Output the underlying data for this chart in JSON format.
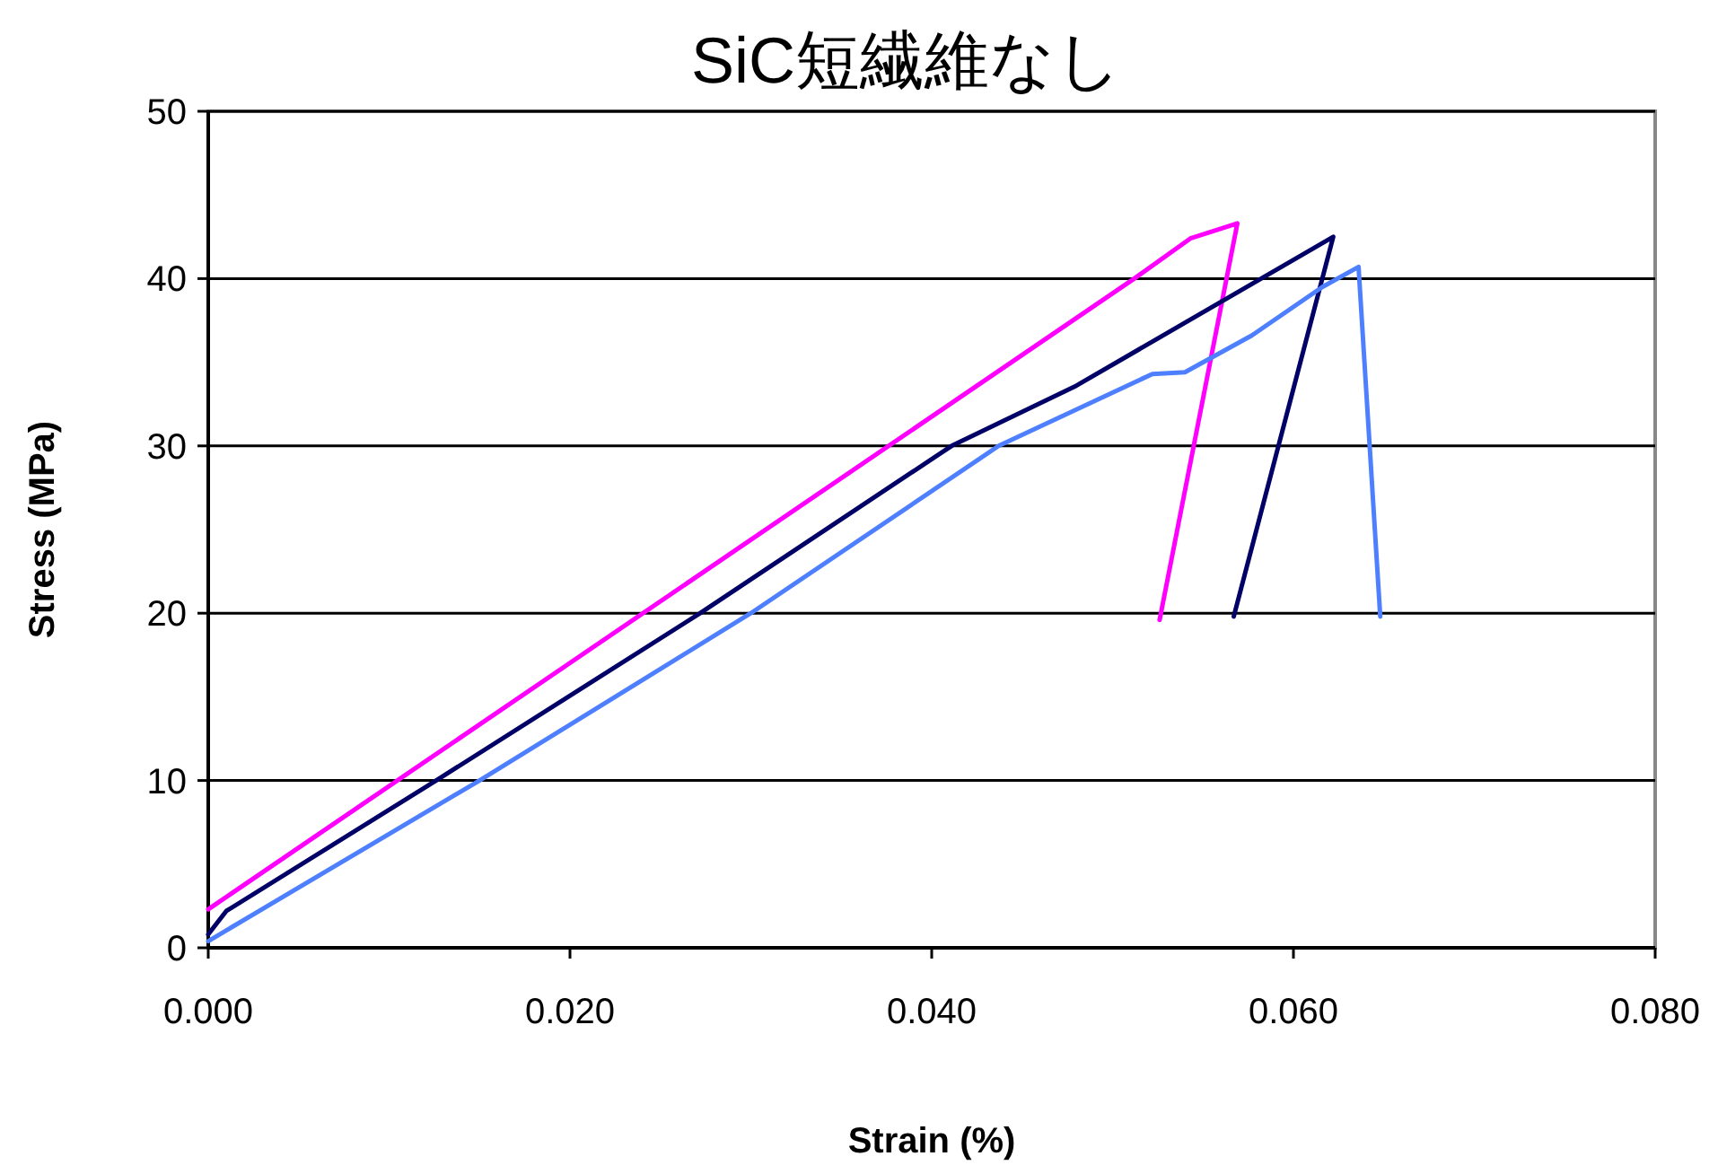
{
  "chart_data": {
    "type": "line",
    "title": "SiC短繊維なし",
    "xlabel": "Strain (%)",
    "ylabel": "Stress (MPa)",
    "xlim": [
      0,
      0.08
    ],
    "xticks": [
      {
        "value": 0,
        "label": "0.000"
      },
      {
        "value": 0.02,
        "label": "0.020"
      },
      {
        "value": 0.04,
        "label": "0.040"
      },
      {
        "value": 0.06,
        "label": "0.060"
      },
      {
        "value": 0.08,
        "label": "0.080"
      }
    ],
    "ylim": [
      0,
      50
    ],
    "yticks": [
      0,
      10,
      20,
      30,
      40,
      50
    ],
    "grid": "y",
    "marker": "none",
    "line_style": "solid",
    "series": [
      {
        "color": "#ff00ff",
        "x": [
          0,
          0.0512,
          0.0543,
          0.0569,
          0.0526
        ],
        "values": [
          2.3,
          40,
          42.4,
          43.3,
          19.6
        ]
      },
      {
        "color": "#000066",
        "x": [
          0,
          0.001,
          0.0126,
          0.0272,
          0.0411,
          0.048,
          0.0622,
          0.0567
        ],
        "values": [
          0.8,
          2.2,
          10,
          20,
          30,
          33.6,
          42.5,
          19.8
        ]
      },
      {
        "color": "#4d7fff",
        "x": [
          0,
          0.015,
          0.03,
          0.0437,
          0.0522,
          0.054,
          0.0577,
          0.0616,
          0.0636,
          0.0648
        ],
        "values": [
          0.4,
          10,
          20,
          30,
          34.3,
          34.4,
          36.6,
          39.5,
          40.7,
          19.8
        ]
      }
    ]
  }
}
